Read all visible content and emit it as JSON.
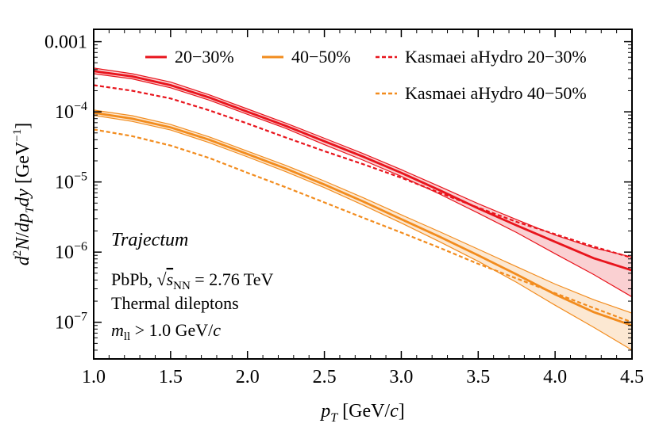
{
  "chart_data": {
    "type": "line",
    "xlabel": "p_T [GeV/c]",
    "ylabel": "d²N/dp_T dy [GeV⁻¹]",
    "xlim": [
      1.0,
      4.5
    ],
    "ylim": [
      3e-08,
      0.0015
    ],
    "yscale": "log",
    "x_ticks": [
      "1.0",
      "1.5",
      "2.0",
      "2.5",
      "3.0",
      "3.5",
      "4.0",
      "4.5"
    ],
    "y_ticks": [
      "0.001",
      "10⁻⁴",
      "10⁻⁵",
      "10⁻⁶",
      "10⁻⁷"
    ],
    "grid": false,
    "legend_placement": "top",
    "annotations": {
      "title": "Trajectum",
      "system": "PbPb, √s_NN = 2.76 TeV",
      "process": "Thermal dileptons",
      "cut": "m_ll > 1.0 GeV/c"
    },
    "x": [
      1.0,
      1.25,
      1.5,
      1.75,
      2.0,
      2.25,
      2.5,
      2.75,
      3.0,
      3.25,
      3.5,
      3.75,
      4.0,
      4.25,
      4.5
    ],
    "series": [
      {
        "name": "20−30%",
        "color": "#e8141c",
        "style": "solid-band",
        "values": [
          0.00038,
          0.00032,
          0.00024,
          0.00016,
          0.0001,
          6.3e-05,
          3.8e-05,
          2.3e-05,
          1.35e-05,
          7.6e-06,
          4.2e-06,
          2.4e-06,
          1.4e-06,
          8.2e-07,
          5.5e-07
        ],
        "upper": [
          0.00042,
          0.00035,
          0.000265,
          0.000175,
          0.00011,
          6.9e-05,
          4.2e-05,
          2.55e-05,
          1.5e-05,
          8.6e-06,
          4.9e-06,
          2.9e-06,
          1.75e-06,
          1.15e-06,
          8.5e-07
        ],
        "lower": [
          0.00035,
          0.000295,
          0.00022,
          0.000147,
          9.2e-05,
          5.8e-05,
          3.4e-05,
          2.05e-05,
          1.2e-05,
          6.7e-06,
          3.6e-06,
          1.9e-06,
          9.5e-07,
          4.8e-07,
          2.3e-07
        ]
      },
      {
        "name": "40−50%",
        "color": "#f28c1e",
        "style": "solid-band",
        "values": [
          9.7e-05,
          8e-05,
          6e-05,
          4e-05,
          2.5e-05,
          1.55e-05,
          9.2e-06,
          5.3e-06,
          2.95e-06,
          1.65e-06,
          9e-07,
          4.8e-07,
          2.5e-07,
          1.4e-07,
          9e-08
        ],
        "upper": [
          0.000106,
          8.8e-05,
          6.6e-05,
          4.4e-05,
          2.75e-05,
          1.72e-05,
          1.03e-05,
          6e-06,
          3.4e-06,
          1.95e-06,
          1.1e-06,
          6.2e-07,
          3.5e-07,
          2.1e-07,
          1.35e-07
        ],
        "lower": [
          8.9e-05,
          7.3e-05,
          5.5e-05,
          3.65e-05,
          2.28e-05,
          1.4e-05,
          8.3e-06,
          4.7e-06,
          2.6e-06,
          1.4e-06,
          7.4e-07,
          3.7e-07,
          1.75e-07,
          8.5e-08,
          4e-08
        ]
      },
      {
        "name": "Kasmaei aHydro 20−30%",
        "color": "#e8141c",
        "style": "dashed",
        "values": [
          0.00024,
          0.0002,
          0.000155,
          0.000105,
          6.8e-05,
          4.3e-05,
          2.75e-05,
          1.8e-05,
          1.15e-05,
          7e-06,
          4.3e-06,
          2.7e-06,
          1.8e-06,
          1.2e-06,
          8.3e-07
        ]
      },
      {
        "name": "Kasmaei aHydro 40−50%",
        "color": "#f28c1e",
        "style": "dashed",
        "values": [
          5.6e-05,
          4.5e-05,
          3.3e-05,
          2.2e-05,
          1.35e-05,
          8.4e-06,
          5.1e-06,
          3.1e-06,
          1.9e-06,
          1.15e-06,
          6.8e-07,
          4.2e-07,
          2.6e-07,
          1.6e-07,
          1e-07
        ]
      }
    ]
  }
}
